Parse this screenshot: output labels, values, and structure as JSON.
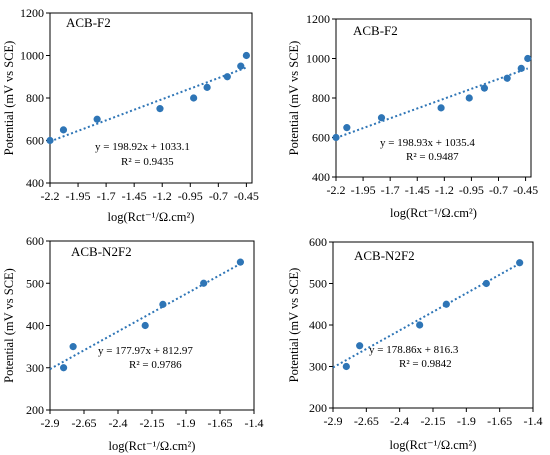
{
  "chart_data": [
    {
      "type": "scatter",
      "title": "ACB-F2",
      "xlabel": "log(Rct⁻¹/Ω.cm²)",
      "ylabel": "Potential (mV vs SCE)",
      "xlim": [
        -2.2,
        -0.4
      ],
      "ylim": [
        400,
        1200
      ],
      "xticks": [
        "-2.2",
        "-1.95",
        "-1.7",
        "-1.45",
        "-1.2",
        "-0.95",
        "-0.7",
        "-0.45"
      ],
      "yticks": [
        "400",
        "600",
        "800",
        "1000",
        "1200"
      ],
      "points": [
        {
          "x": -2.2,
          "y": 600
        },
        {
          "x": -2.08,
          "y": 650
        },
        {
          "x": -1.78,
          "y": 700
        },
        {
          "x": -1.22,
          "y": 750
        },
        {
          "x": -0.92,
          "y": 800
        },
        {
          "x": -0.8,
          "y": 850
        },
        {
          "x": -0.62,
          "y": 900
        },
        {
          "x": -0.5,
          "y": 950
        },
        {
          "x": -0.45,
          "y": 1000
        }
      ],
      "trendline": {
        "slope": 198.92,
        "intercept": 1033.1
      },
      "equation": "y = 198.92x + 1033.1",
      "r2": "R² = 0.9435",
      "color": "#2E75B6"
    },
    {
      "type": "scatter",
      "title": "ACB-F2",
      "xlabel": "log(Rct⁻¹/Ω.cm²)",
      "ylabel": "Potential (mV vs SCE)",
      "xlim": [
        -2.2,
        -0.4
      ],
      "ylim": [
        400,
        1200
      ],
      "xticks": [
        "-2.2",
        "-1.95",
        "-1.7",
        "-1.45",
        "-1.2",
        "-0.95",
        "-0.7",
        "-0.45"
      ],
      "yticks": [
        "400",
        "600",
        "800",
        "1000",
        "1200"
      ],
      "points": [
        {
          "x": -2.2,
          "y": 600
        },
        {
          "x": -2.1,
          "y": 650
        },
        {
          "x": -1.78,
          "y": 700
        },
        {
          "x": -1.23,
          "y": 750
        },
        {
          "x": -0.97,
          "y": 800
        },
        {
          "x": -0.83,
          "y": 850
        },
        {
          "x": -0.62,
          "y": 900
        },
        {
          "x": -0.49,
          "y": 950
        },
        {
          "x": -0.43,
          "y": 1000
        }
      ],
      "trendline": {
        "slope": 198.93,
        "intercept": 1035.4
      },
      "equation": "y = 198.93x + 1035.4",
      "r2": "R² = 0.9487",
      "color": "#2E75B6"
    },
    {
      "type": "scatter",
      "title": "ACB-N2F2",
      "xlabel": "log(Rct⁻¹/Ω.cm²)",
      "ylabel": "Potential (mV vs SCE)",
      "xlim": [
        -2.9,
        -1.4
      ],
      "ylim": [
        200,
        600
      ],
      "xticks": [
        "-2.9",
        "-2.65",
        "-2.4",
        "-2.15",
        "-1.9",
        "-1.65",
        "-1.4"
      ],
      "yticks": [
        "200",
        "300",
        "400",
        "500",
        "600"
      ],
      "points": [
        {
          "x": -2.8,
          "y": 300
        },
        {
          "x": -2.73,
          "y": 350
        },
        {
          "x": -2.2,
          "y": 400
        },
        {
          "x": -2.07,
          "y": 450
        },
        {
          "x": -1.77,
          "y": 500
        },
        {
          "x": -1.5,
          "y": 550
        }
      ],
      "trendline": {
        "slope": 177.97,
        "intercept": 812.97
      },
      "equation": "y = 177.97x + 812.97",
      "r2": "R² = 0.9786",
      "color": "#2E75B6"
    },
    {
      "type": "scatter",
      "title": "ACB-N2F2",
      "xlabel": "log(Rct⁻¹/Ω.cm²)",
      "ylabel": "Potential (mV vs SCE)",
      "xlim": [
        -2.9,
        -1.4
      ],
      "ylim": [
        200,
        600
      ],
      "xticks": [
        "-2.9",
        "-2.65",
        "-2.4",
        "-2.15",
        "-1.9",
        "-1.65",
        "-1.4"
      ],
      "yticks": [
        "200",
        "300",
        "400",
        "500",
        "600"
      ],
      "points": [
        {
          "x": -2.8,
          "y": 300
        },
        {
          "x": -2.7,
          "y": 350
        },
        {
          "x": -2.25,
          "y": 400
        },
        {
          "x": -2.05,
          "y": 450
        },
        {
          "x": -1.75,
          "y": 500
        },
        {
          "x": -1.5,
          "y": 550
        }
      ],
      "trendline": {
        "slope": 178.86,
        "intercept": 816.3
      },
      "equation": "y = 178.86x + 816.3",
      "r2": "R² = 0.9842",
      "color": "#2E75B6"
    }
  ]
}
